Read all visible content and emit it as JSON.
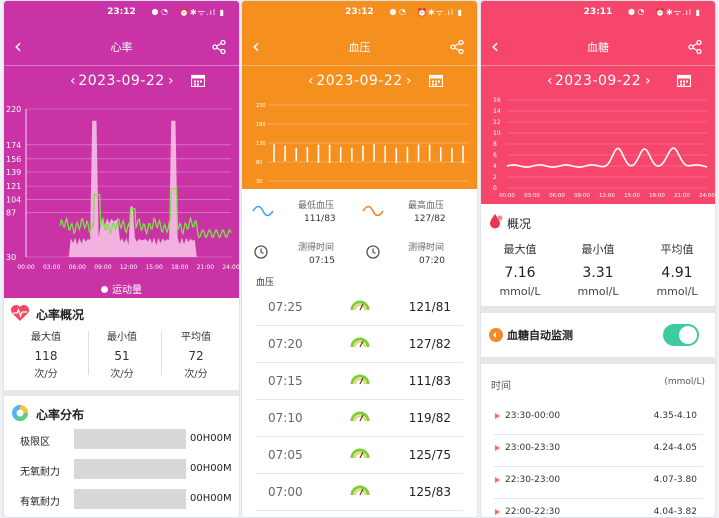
{
  "status_bar": {
    "time_hr": "23:12",
    "time_bg": "23:11"
  },
  "colors": {
    "heart": "#c933a6",
    "pressure": "#f5901f",
    "glucose": "#f6466c",
    "toggle": "#3fcba1"
  },
  "heart_rate": {
    "title": "心率",
    "date": "2023-09-22",
    "y_ticks": [
      "220",
      "174",
      "156",
      "139",
      "121",
      "104",
      "87",
      "30"
    ],
    "x_ticks": [
      "00:00",
      "03:00",
      "06:00",
      "09:00",
      "12:00",
      "15:00",
      "18:00",
      "21:00",
      "24:00"
    ],
    "legend": "运动量",
    "overview_title": "心率概况",
    "max_label": "最大值",
    "max_value": "118",
    "min_label": "最小值",
    "min_value": "51",
    "avg_label": "平均值",
    "avg_value": "72",
    "unit": "次/分",
    "dist_title": "心率分布",
    "dist_rows": [
      {
        "label": "极限区",
        "value": "00H00M"
      },
      {
        "label": "无氧耐力",
        "value": "00H00M"
      },
      {
        "label": "有氧耐力",
        "value": "00H00M"
      }
    ]
  },
  "blood_pressure": {
    "title": "血压",
    "date": "2023-09-22",
    "y_ticks": [
      "230",
      "180",
      "130",
      "80",
      "30"
    ],
    "low_label": "最低血压",
    "low_value": "111/83",
    "high_label": "最高血压",
    "high_value": "127/82",
    "time_label": "测得时间",
    "low_time": "07:15",
    "high_time": "07:20",
    "list_title": "血压",
    "records": [
      {
        "time": "07:25",
        "value": "121/81"
      },
      {
        "time": "07:20",
        "value": "127/82"
      },
      {
        "time": "07:15",
        "value": "111/83"
      },
      {
        "time": "07:10",
        "value": "119/82"
      },
      {
        "time": "07:05",
        "value": "125/75"
      },
      {
        "time": "07:00",
        "value": "125/83"
      }
    ]
  },
  "blood_glucose": {
    "title": "血糖",
    "date": "2023-09-22",
    "y_ticks": [
      "16",
      "14",
      "12",
      "10",
      "8",
      "6",
      "4",
      "2",
      "0"
    ],
    "x_ticks": [
      "00:00",
      "03:00",
      "06:00",
      "09:00",
      "12:00",
      "15:00",
      "18:00",
      "21:00",
      "24:00"
    ],
    "overview_title": "概况",
    "max_label": "最大值",
    "max_value": "7.16",
    "min_label": "最小值",
    "min_value": "3.31",
    "avg_label": "平均值",
    "avg_value": "4.91",
    "unit": "mmol/L",
    "monitor_label": "血糖自动监测",
    "monitor_on": true,
    "time_header": "时间",
    "unit_header": "(mmol/L)",
    "rows": [
      {
        "time": "23:30-00:00",
        "value": "4.35-4.10"
      },
      {
        "time": "23:00-23:30",
        "value": "4.24-4.05"
      },
      {
        "time": "22:30-23:00",
        "value": "4.07-3.80"
      },
      {
        "time": "22:00-22:30",
        "value": "4.04-3.82"
      }
    ]
  }
}
